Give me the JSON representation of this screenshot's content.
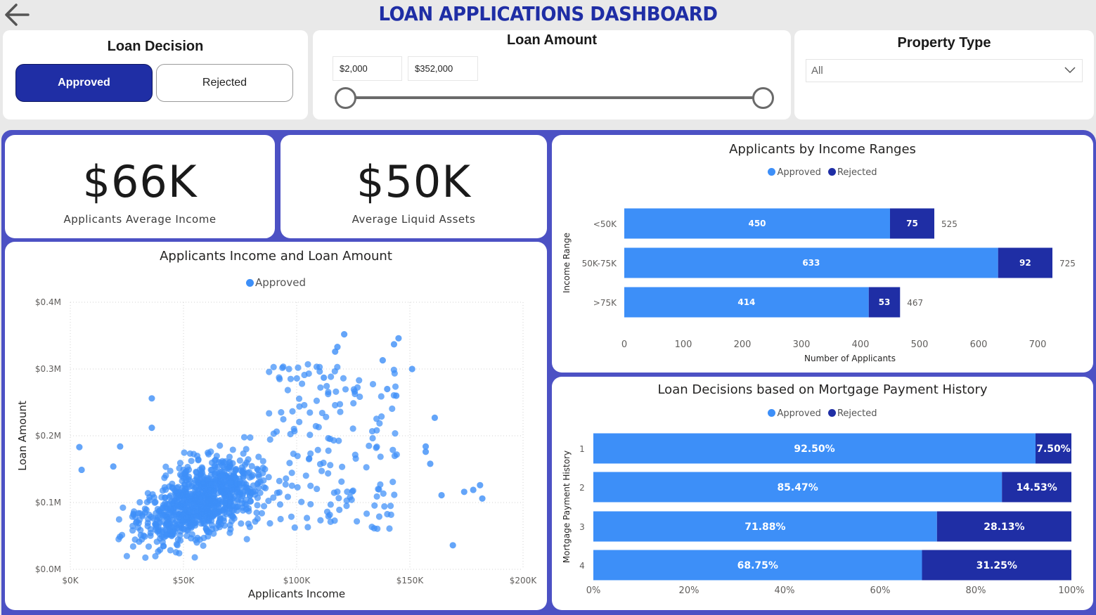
{
  "header": {
    "title": "LOAN APPLICATIONS DASHBOARD",
    "back_icon": "back-arrow-icon"
  },
  "filters": {
    "loan_decision": {
      "title": "Loan Decision",
      "options": [
        "Approved",
        "Rejected"
      ],
      "selected": "Approved"
    },
    "loan_amount": {
      "title": "Loan Amount",
      "min": "$2,000",
      "max": "$352,000"
    },
    "property_type": {
      "title": "Property Type",
      "value": "All"
    }
  },
  "kpis": [
    {
      "value": "$66K",
      "label": "Applicants Average Income"
    },
    {
      "value": "$50K",
      "label": "Average Liquid Assets"
    }
  ],
  "colors": {
    "approved": "#3d8ff8",
    "rejected": "#1f2ea5",
    "accent": "#1f2ea5",
    "frame": "#4c51c4"
  },
  "chart_data": [
    {
      "type": "scatter",
      "title": "Applicants Income and Loan Amount",
      "legend": [
        "Approved"
      ],
      "xlabel": "Applicants Income",
      "ylabel": "Loan Amount",
      "xlim": [
        0,
        200000
      ],
      "ylim": [
        0,
        400000
      ],
      "xticks": [
        "$0K",
        "$50K",
        "$100K",
        "$150K",
        "$200K"
      ],
      "yticks": [
        "$0.0M",
        "$0.1M",
        "$0.2M",
        "$0.3M",
        "$0.4M"
      ],
      "outlier_points": [
        {
          "x": 4000,
          "y": 183000
        },
        {
          "x": 5000,
          "y": 149000
        },
        {
          "x": 19000,
          "y": 154000
        },
        {
          "x": 22000,
          "y": 184000
        },
        {
          "x": 36000,
          "y": 256000
        },
        {
          "x": 36000,
          "y": 212000
        },
        {
          "x": 121000,
          "y": 352000
        },
        {
          "x": 145000,
          "y": 346000
        },
        {
          "x": 143000,
          "y": 337000
        },
        {
          "x": 151000,
          "y": 300000
        },
        {
          "x": 161000,
          "y": 227000
        },
        {
          "x": 157000,
          "y": 184000
        },
        {
          "x": 157000,
          "y": 176000
        },
        {
          "x": 159000,
          "y": 158000
        },
        {
          "x": 164000,
          "y": 111000
        },
        {
          "x": 169000,
          "y": 36000
        },
        {
          "x": 174000,
          "y": 116000
        },
        {
          "x": 178000,
          "y": 119000
        },
        {
          "x": 181000,
          "y": 126000
        },
        {
          "x": 182000,
          "y": 106000
        },
        {
          "x": 117000,
          "y": 326000
        },
        {
          "x": 112000,
          "y": 287000
        },
        {
          "x": 138000,
          "y": 313000
        },
        {
          "x": 140000,
          "y": 270000
        },
        {
          "x": 144000,
          "y": 260000
        },
        {
          "x": 118000,
          "y": 333000
        }
      ],
      "cluster_note": "dense cluster of approved applicants mostly between $20K-$130K income and $0.03M-$0.3M loan amount"
    },
    {
      "type": "bar",
      "orientation": "horizontal",
      "stacked": true,
      "title": "Applicants by Income Ranges",
      "legend": [
        "Approved",
        "Rejected"
      ],
      "xlabel": "Number of Applicants",
      "ylabel": "Income Range",
      "xlim": [
        0,
        750
      ],
      "xticks": [
        0,
        100,
        200,
        300,
        400,
        500,
        600,
        700
      ],
      "categories": [
        "<50K",
        "50K-75K",
        ">75K"
      ],
      "series": [
        {
          "name": "Approved",
          "values": [
            450,
            633,
            414
          ]
        },
        {
          "name": "Rejected",
          "values": [
            75,
            92,
            53
          ]
        }
      ],
      "totals": [
        525,
        725,
        467
      ]
    },
    {
      "type": "bar",
      "orientation": "horizontal",
      "stacked": true,
      "percent": true,
      "title": "Loan Decisions based on Mortgage Payment History",
      "legend": [
        "Approved",
        "Rejected"
      ],
      "ylabel": "Mortgage Payment History",
      "xticks": [
        "0%",
        "20%",
        "40%",
        "60%",
        "80%",
        "100%"
      ],
      "categories": [
        "1",
        "2",
        "3",
        "4"
      ],
      "series": [
        {
          "name": "Approved",
          "values": [
            92.5,
            85.47,
            71.88,
            68.75
          ],
          "labels": [
            "92.50%",
            "85.47%",
            "71.88%",
            "68.75%"
          ]
        },
        {
          "name": "Rejected",
          "values": [
            7.5,
            14.53,
            28.13,
            31.25
          ],
          "labels": [
            "7.50%",
            "14.53%",
            "28.13%",
            "31.25%"
          ]
        }
      ]
    }
  ]
}
